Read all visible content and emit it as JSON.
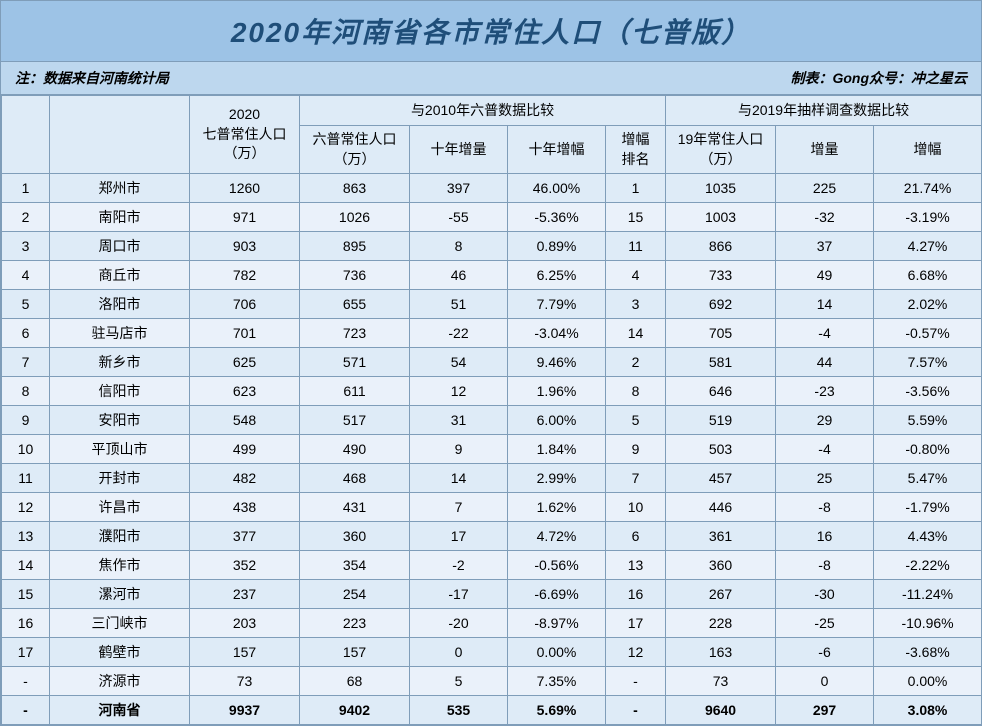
{
  "title": "2020年河南省各市常住人口（七普版）",
  "note_left": "注：数据来自河南统计局",
  "note_right": "制表：Gong众号：冲之星云",
  "colors": {
    "title_bg": "#9dc3e6",
    "title_color": "#1f4e79",
    "note_bg": "#bdd7ee",
    "header_bg": "#deebf7",
    "row_odd": "#deebf7",
    "row_even": "#eaf1fa",
    "border": "#7f9db9"
  },
  "headers": {
    "rank": "",
    "city": "",
    "pop2020": "2020\n七普常住人口\n（万）",
    "group2010": "与2010年六普数据比较",
    "pop2010": "六普常住人口\n（万）",
    "delta10": "十年增量",
    "rate10": "十年增幅",
    "rank10": "增幅\n排名",
    "group2019": "与2019年抽样调查数据比较",
    "pop2019": "19年常住人口\n（万）",
    "delta19": "增量",
    "rate19": "增幅"
  },
  "rows": [
    {
      "rank": "1",
      "city": "郑州市",
      "pop2020": "1260",
      "pop2010": "863",
      "d10": "397",
      "r10": "46.00%",
      "rnk": "1",
      "pop2019": "1035",
      "d19": "225",
      "r19": "21.74%"
    },
    {
      "rank": "2",
      "city": "南阳市",
      "pop2020": "971",
      "pop2010": "1026",
      "d10": "-55",
      "r10": "-5.36%",
      "rnk": "15",
      "pop2019": "1003",
      "d19": "-32",
      "r19": "-3.19%"
    },
    {
      "rank": "3",
      "city": "周口市",
      "pop2020": "903",
      "pop2010": "895",
      "d10": "8",
      "r10": "0.89%",
      "rnk": "11",
      "pop2019": "866",
      "d19": "37",
      "r19": "4.27%"
    },
    {
      "rank": "4",
      "city": "商丘市",
      "pop2020": "782",
      "pop2010": "736",
      "d10": "46",
      "r10": "6.25%",
      "rnk": "4",
      "pop2019": "733",
      "d19": "49",
      "r19": "6.68%"
    },
    {
      "rank": "5",
      "city": "洛阳市",
      "pop2020": "706",
      "pop2010": "655",
      "d10": "51",
      "r10": "7.79%",
      "rnk": "3",
      "pop2019": "692",
      "d19": "14",
      "r19": "2.02%"
    },
    {
      "rank": "6",
      "city": "驻马店市",
      "pop2020": "701",
      "pop2010": "723",
      "d10": "-22",
      "r10": "-3.04%",
      "rnk": "14",
      "pop2019": "705",
      "d19": "-4",
      "r19": "-0.57%"
    },
    {
      "rank": "7",
      "city": "新乡市",
      "pop2020": "625",
      "pop2010": "571",
      "d10": "54",
      "r10": "9.46%",
      "rnk": "2",
      "pop2019": "581",
      "d19": "44",
      "r19": "7.57%"
    },
    {
      "rank": "8",
      "city": "信阳市",
      "pop2020": "623",
      "pop2010": "611",
      "d10": "12",
      "r10": "1.96%",
      "rnk": "8",
      "pop2019": "646",
      "d19": "-23",
      "r19": "-3.56%"
    },
    {
      "rank": "9",
      "city": "安阳市",
      "pop2020": "548",
      "pop2010": "517",
      "d10": "31",
      "r10": "6.00%",
      "rnk": "5",
      "pop2019": "519",
      "d19": "29",
      "r19": "5.59%"
    },
    {
      "rank": "10",
      "city": "平顶山市",
      "pop2020": "499",
      "pop2010": "490",
      "d10": "9",
      "r10": "1.84%",
      "rnk": "9",
      "pop2019": "503",
      "d19": "-4",
      "r19": "-0.80%"
    },
    {
      "rank": "11",
      "city": "开封市",
      "pop2020": "482",
      "pop2010": "468",
      "d10": "14",
      "r10": "2.99%",
      "rnk": "7",
      "pop2019": "457",
      "d19": "25",
      "r19": "5.47%"
    },
    {
      "rank": "12",
      "city": "许昌市",
      "pop2020": "438",
      "pop2010": "431",
      "d10": "7",
      "r10": "1.62%",
      "rnk": "10",
      "pop2019": "446",
      "d19": "-8",
      "r19": "-1.79%"
    },
    {
      "rank": "13",
      "city": "濮阳市",
      "pop2020": "377",
      "pop2010": "360",
      "d10": "17",
      "r10": "4.72%",
      "rnk": "6",
      "pop2019": "361",
      "d19": "16",
      "r19": "4.43%"
    },
    {
      "rank": "14",
      "city": "焦作市",
      "pop2020": "352",
      "pop2010": "354",
      "d10": "-2",
      "r10": "-0.56%",
      "rnk": "13",
      "pop2019": "360",
      "d19": "-8",
      "r19": "-2.22%"
    },
    {
      "rank": "15",
      "city": "漯河市",
      "pop2020": "237",
      "pop2010": "254",
      "d10": "-17",
      "r10": "-6.69%",
      "rnk": "16",
      "pop2019": "267",
      "d19": "-30",
      "r19": "-11.24%"
    },
    {
      "rank": "16",
      "city": "三门峡市",
      "pop2020": "203",
      "pop2010": "223",
      "d10": "-20",
      "r10": "-8.97%",
      "rnk": "17",
      "pop2019": "228",
      "d19": "-25",
      "r19": "-10.96%"
    },
    {
      "rank": "17",
      "city": "鹤壁市",
      "pop2020": "157",
      "pop2010": "157",
      "d10": "0",
      "r10": "0.00%",
      "rnk": "12",
      "pop2019": "163",
      "d19": "-6",
      "r19": "-3.68%"
    },
    {
      "rank": "-",
      "city": "济源市",
      "pop2020": "73",
      "pop2010": "68",
      "d10": "5",
      "r10": "7.35%",
      "rnk": "-",
      "pop2019": "73",
      "d19": "0",
      "r19": "0.00%"
    }
  ],
  "total": {
    "rank": "-",
    "city": "河南省",
    "pop2020": "9937",
    "pop2010": "9402",
    "d10": "535",
    "r10": "5.69%",
    "rnk": "-",
    "pop2019": "9640",
    "d19": "297",
    "r19": "3.08%"
  }
}
